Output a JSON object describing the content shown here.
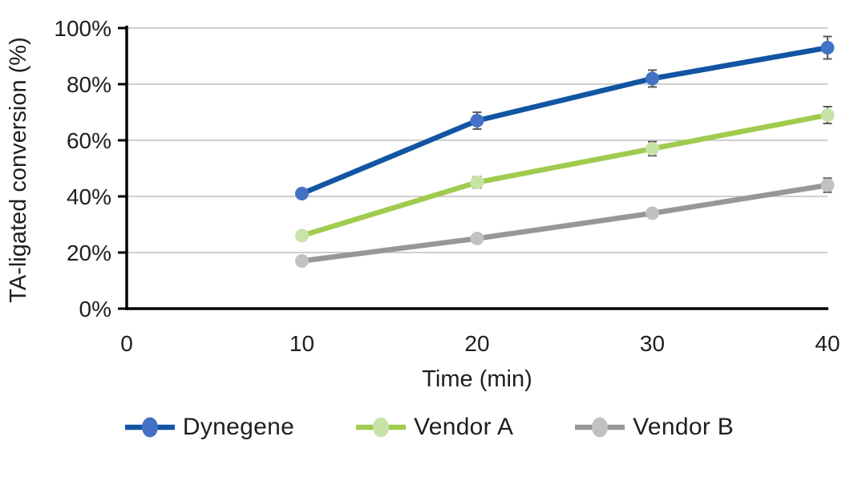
{
  "chart_data": {
    "type": "line",
    "xlabel": "Time (min)",
    "ylabel": "TA-ligated conversion (%)",
    "x": [
      10,
      20,
      30,
      40
    ],
    "x_tick_labels": [
      "0",
      "10",
      "20",
      "30",
      "40"
    ],
    "y_tick_labels": [
      "0%",
      "20%",
      "40%",
      "60%",
      "80%",
      "100%"
    ],
    "y_tick_values": [
      0,
      20,
      40,
      60,
      80,
      100
    ],
    "xlim": [
      0,
      40
    ],
    "ylim": [
      0,
      100
    ],
    "grid": "horizontal",
    "legend_position": "bottom",
    "error_bars": true,
    "series": [
      {
        "name": "Dynegene",
        "values": [
          41,
          67,
          82,
          93
        ],
        "errors": [
          1.5,
          3,
          3,
          4
        ],
        "line_color": "#1155A3",
        "marker_color": "#4472C4"
      },
      {
        "name": "Vendor A",
        "values": [
          26,
          45,
          57,
          69
        ],
        "errors": [
          1,
          2,
          2.5,
          3
        ],
        "line_color": "#A0CB4E",
        "marker_color": "#C8E3A8"
      },
      {
        "name": "Vendor B",
        "values": [
          17,
          25,
          34,
          44
        ],
        "errors": [
          1,
          1,
          1.5,
          2.5
        ],
        "line_color": "#979797",
        "marker_color": "#C1C1C1"
      }
    ],
    "colors": {
      "axis": "#000000",
      "gridline": "#BFBFBF",
      "error_bar": "#595959",
      "text": "#1F1F1F",
      "background": "#FFFFFF"
    }
  }
}
